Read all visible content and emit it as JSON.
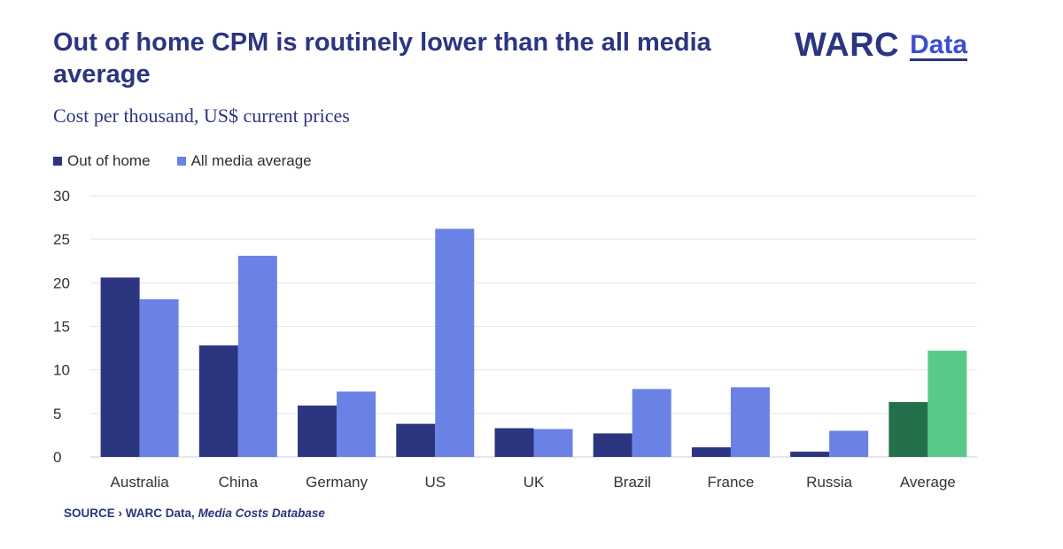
{
  "header": {
    "title": "Out of home CPM is routinely lower than the all media average",
    "subtitle": "Cost per thousand, US$ current prices",
    "logo_brand": "WARC",
    "logo_product": "Data"
  },
  "source": {
    "prefix": "SOURCE ›",
    "publisher": "WARC Data,",
    "dataset": "Media Costs Database"
  },
  "colors": {
    "out_of_home": "#2b3580",
    "all_media": "#6a82e6",
    "average_out_of_home": "#23704a",
    "average_all_media": "#59c989",
    "text_dark": "#2b3580",
    "grid": "#e2e5ee"
  },
  "chart_data": {
    "type": "bar",
    "categories": [
      "Australia",
      "China",
      "Germany",
      "US",
      "UK",
      "Brazil",
      "France",
      "Russia",
      "Average"
    ],
    "series": [
      {
        "name": "Out of home",
        "values": [
          20.6,
          12.8,
          5.9,
          3.8,
          3.3,
          2.7,
          1.1,
          0.6,
          6.3
        ]
      },
      {
        "name": "All media average",
        "values": [
          18.1,
          23.1,
          7.5,
          26.2,
          3.2,
          7.8,
          8.0,
          3.0,
          12.2
        ]
      }
    ],
    "ylim": [
      0,
      30
    ],
    "yticks": [
      0,
      5,
      10,
      15,
      20,
      25,
      30
    ],
    "highlighted_category": "Average",
    "grid": true,
    "legend_position": "top-left"
  }
}
